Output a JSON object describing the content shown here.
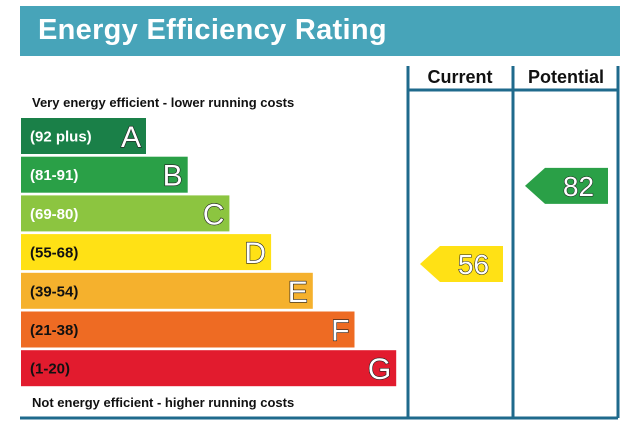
{
  "header": {
    "title": "Energy Efficiency Rating"
  },
  "columns": {
    "current_label": "Current",
    "potential_label": "Potential"
  },
  "notes": {
    "top": "Very energy efficient - lower running costs",
    "bottom": "Not energy efficient - higher running costs"
  },
  "colors": {
    "header": "#47a4b9",
    "frame": "#1f6a8c"
  },
  "chart_data": {
    "type": "bar",
    "categories": [
      "A",
      "B",
      "C",
      "D",
      "E",
      "F",
      "G"
    ],
    "ranges": [
      "(92 plus)",
      "(81-91)",
      "(69-80)",
      "(55-68)",
      "(39-54)",
      "(21-38)",
      "(1-20)"
    ],
    "colors": [
      "#1a8048",
      "#2aa047",
      "#8cc540",
      "#ffe115",
      "#f5b12d",
      "#ee6b23",
      "#e21b2e"
    ],
    "current": {
      "label": "Current",
      "value": 56,
      "band": "D",
      "color": "#ffe115"
    },
    "potential": {
      "label": "Potential",
      "value": 82,
      "band": "B",
      "color": "#2aa047"
    }
  }
}
